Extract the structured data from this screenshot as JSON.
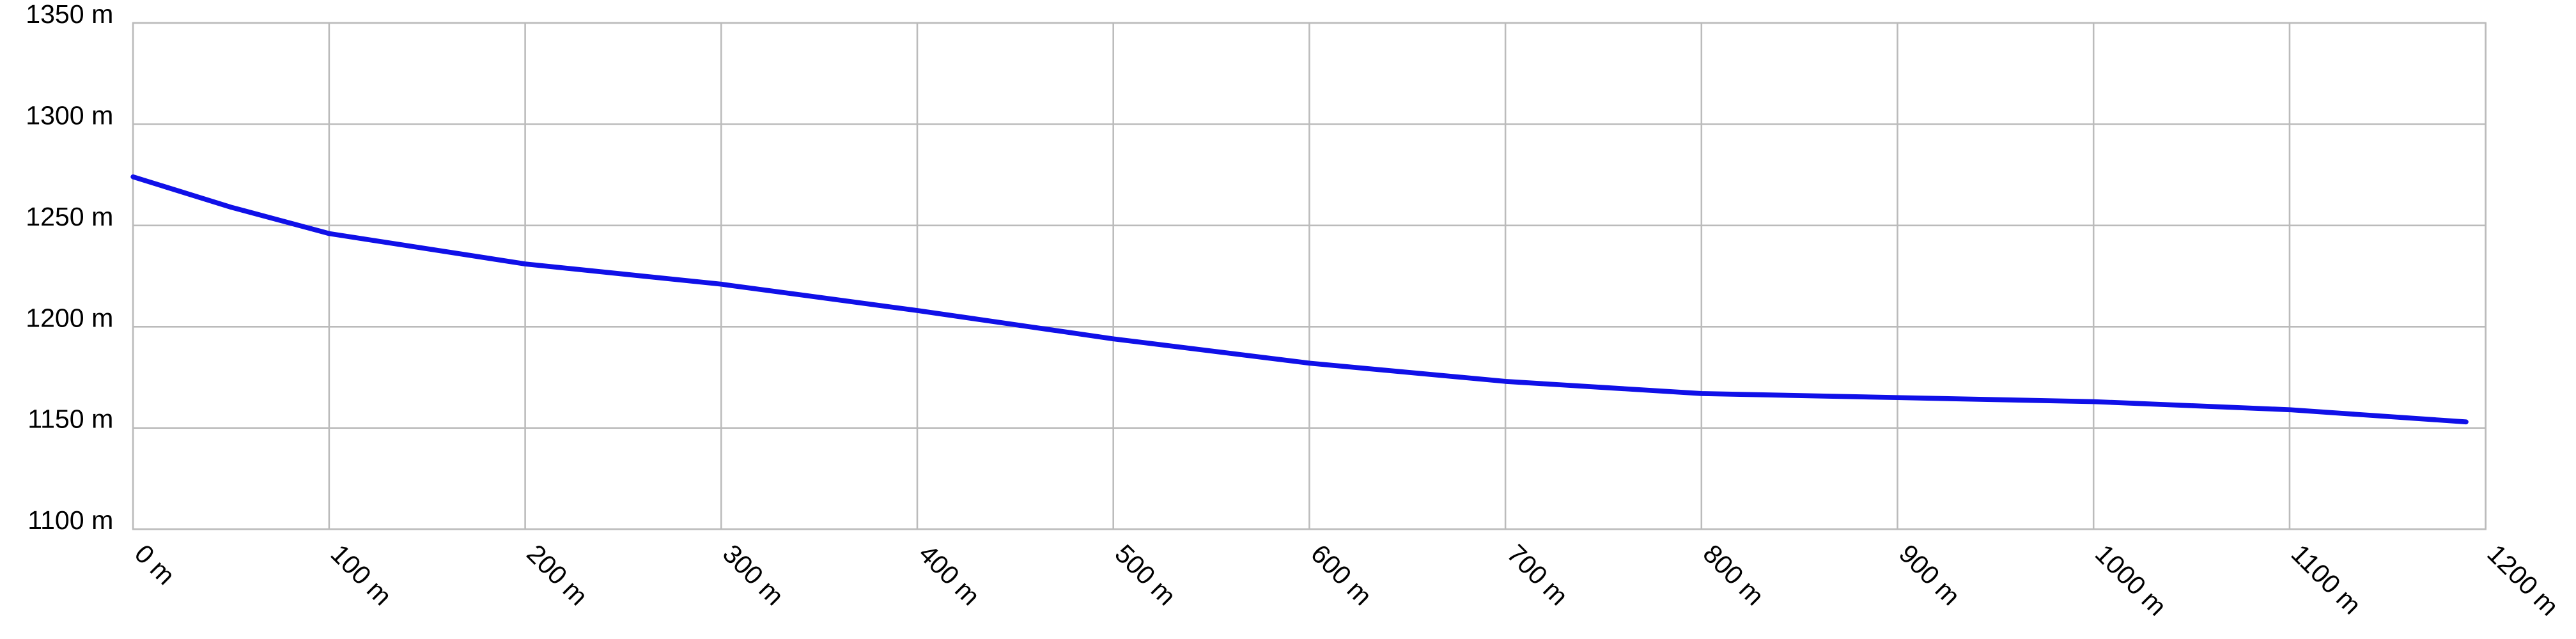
{
  "chart_data": {
    "type": "line",
    "x": [
      0,
      50,
      100,
      200,
      250,
      300,
      400,
      500,
      600,
      700,
      750,
      800,
      900,
      1000,
      1100,
      1190
    ],
    "series": [
      {
        "color": "#1010e8",
        "values": [
          1274,
          1259,
          1246,
          1231,
          1226,
          1221,
          1208,
          1194,
          1182,
          1173,
          1170,
          1167,
          1165,
          1163,
          1159,
          1153
        ]
      }
    ],
    "xlim": [
      0,
      1200
    ],
    "xticks": [
      {
        "value": 0,
        "label": "0 m"
      },
      {
        "value": 100,
        "label": "100 m"
      },
      {
        "value": 200,
        "label": "200 m"
      },
      {
        "value": 300,
        "label": "300 m"
      },
      {
        "value": 400,
        "label": "400 m"
      },
      {
        "value": 500,
        "label": "500 m"
      },
      {
        "value": 600,
        "label": "600 m"
      },
      {
        "value": 700,
        "label": "700 m"
      },
      {
        "value": 800,
        "label": "800 m"
      },
      {
        "value": 900,
        "label": "900 m"
      },
      {
        "value": 1000,
        "label": "1000 m"
      },
      {
        "value": 1100,
        "label": "1100 m"
      },
      {
        "value": 1200,
        "label": "1200 m"
      }
    ],
    "ylim": [
      1100,
      1350
    ],
    "yticks": [
      {
        "value": 1100,
        "label": "1100 m"
      },
      {
        "value": 1150,
        "label": "1150 m"
      },
      {
        "value": 1200,
        "label": "1200 m"
      },
      {
        "value": 1250,
        "label": "1250 m"
      },
      {
        "value": 1300,
        "label": "1300 m"
      },
      {
        "value": 1350,
        "label": "1350 m"
      }
    ],
    "grid": true
  }
}
